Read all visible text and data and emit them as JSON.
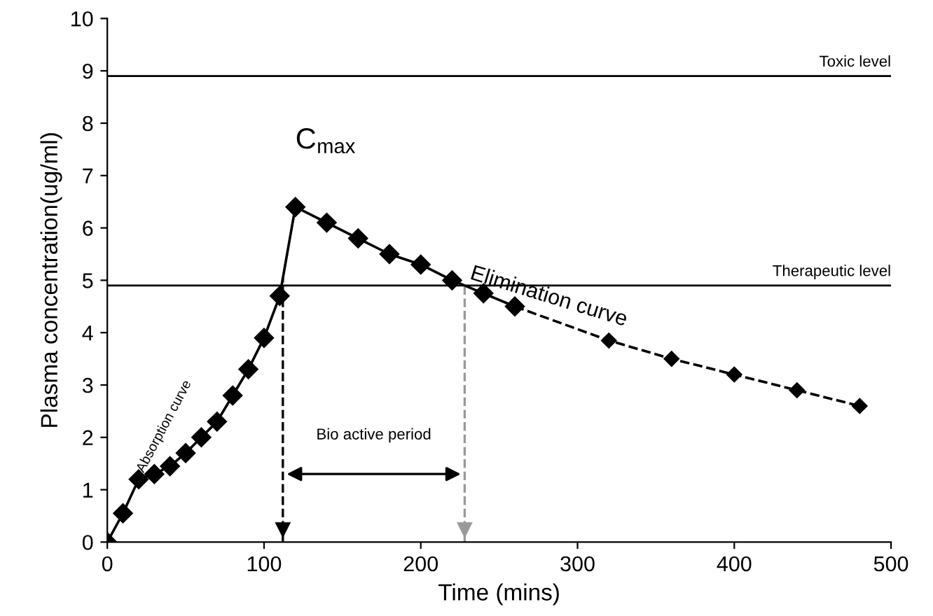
{
  "chart_data": {
    "type": "line",
    "xlabel": "Time (mins)",
    "ylabel": "Plasma concentration(ug/ml)",
    "xlim": [
      0,
      500
    ],
    "xticks": [
      0,
      100,
      200,
      300,
      400,
      500
    ],
    "ylim": [
      0,
      10
    ],
    "yticks": [
      0,
      1,
      2,
      3,
      4,
      5,
      6,
      7,
      8,
      9,
      10
    ],
    "grid": false,
    "marker": "diamond",
    "series": [
      {
        "color": "#000000",
        "line_style": "solid",
        "x": [
          0,
          10,
          20,
          30,
          40,
          50,
          60,
          70,
          80,
          90,
          100,
          110,
          120,
          140,
          160,
          180,
          200,
          220,
          240,
          260
        ],
        "values": [
          0,
          0.55,
          1.2,
          1.3,
          1.45,
          1.7,
          2.0,
          2.3,
          2.8,
          3.3,
          3.9,
          4.7,
          6.4,
          6.1,
          5.8,
          5.5,
          5.3,
          5.0,
          4.75,
          4.5
        ]
      },
      {
        "color": "#000000",
        "line_style": "dashed",
        "x": [
          260,
          320,
          360,
          400,
          440,
          480
        ],
        "values": [
          4.5,
          3.85,
          3.5,
          3.2,
          2.9,
          2.6
        ]
      }
    ],
    "ref_lines": [
      {
        "axis": "y",
        "value": 8.9,
        "label": "Toxic level",
        "color": "#000000",
        "line_style": "solid"
      },
      {
        "axis": "y",
        "value": 4.9,
        "label": "Therapeutic level",
        "color": "#000000",
        "line_style": "solid"
      },
      {
        "axis": "x",
        "value": 112,
        "color": "#000000",
        "line_style": "dashed"
      },
      {
        "axis": "x",
        "value": 228,
        "color": "#999999",
        "line_style": "dashed"
      }
    ],
    "annotations": [
      {
        "text": "C$_{max}$",
        "x": 120,
        "y": 6.4
      },
      {
        "text": "Elimination curve",
        "x": 230,
        "y": 5.0
      },
      {
        "text": "Absorption curve",
        "x": 50,
        "y": 1.7
      },
      "Bio active period"
    ]
  }
}
